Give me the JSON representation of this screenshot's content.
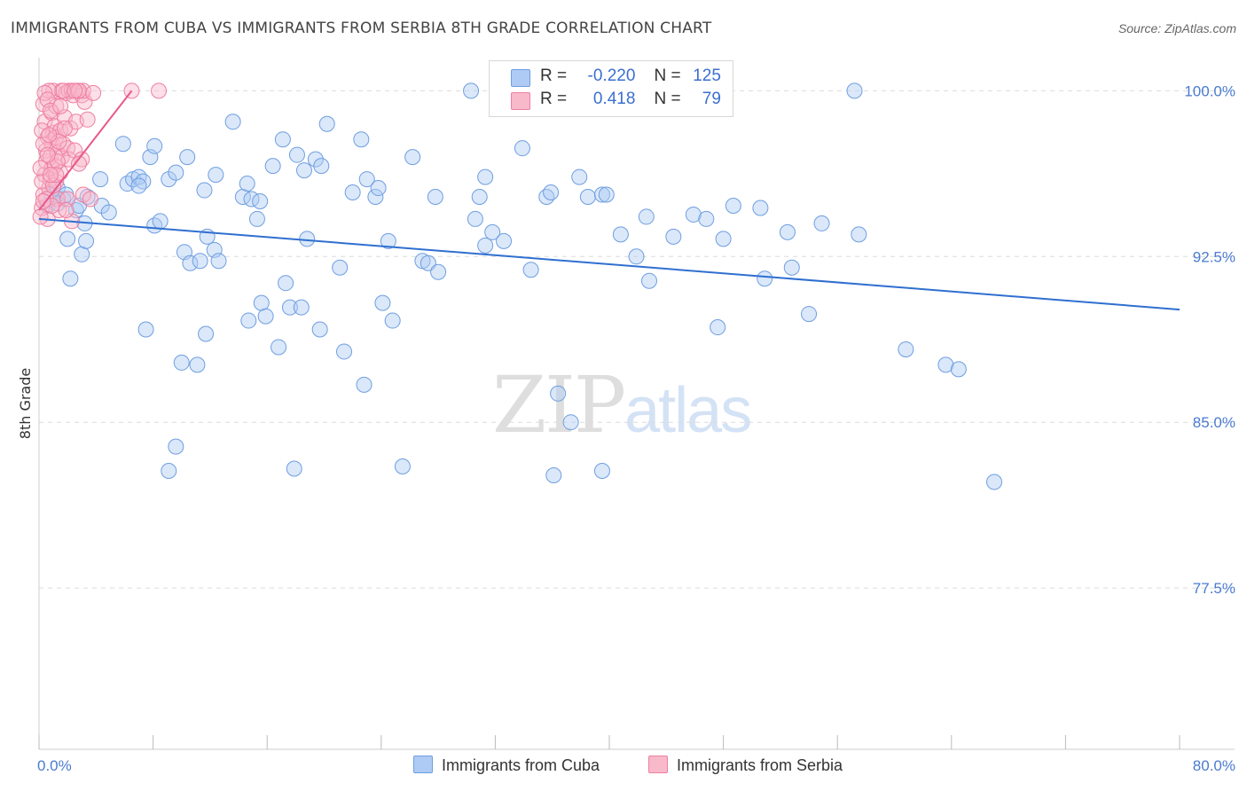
{
  "title": "IMMIGRANTS FROM CUBA VS IMMIGRANTS FROM SERBIA 8TH GRADE CORRELATION CHART",
  "source": "Source: ZipAtlas.com",
  "watermark": {
    "zip": "ZIP",
    "atlas": "atlas"
  },
  "legend": {
    "rows": [
      {
        "r_label": "R =",
        "r_value": "-0.220",
        "n_label": "N =",
        "n_value": "125",
        "color": "#aecbf5"
      },
      {
        "r_label": "R =",
        "r_value": "0.418",
        "n_label": "N =",
        "n_value": "79",
        "color": "#f8b9cb"
      }
    ]
  },
  "bottom_legend": {
    "cuba": "Immigrants from Cuba",
    "serbia": "Immigrants from Serbia"
  },
  "colors": {
    "cuba_fill": "#aecbf5",
    "cuba_stroke": "#6f9ee0",
    "cuba_line": "#2f6fd0",
    "serbia_fill": "#f8b9cb",
    "serbia_stroke": "#ee7fa0",
    "serbia_line": "#e8588a",
    "tick_text": "#4a7bd0",
    "grid": "#dcdcdc"
  },
  "chart_data": {
    "type": "scatter",
    "title": "IMMIGRANTS FROM CUBA VS IMMIGRANTS FROM SERBIA 8TH GRADE CORRELATION CHART",
    "xlabel": "",
    "ylabel": "8th Grade",
    "xlim": [
      0,
      80
    ],
    "ylim": [
      70.2,
      101.3
    ],
    "x_tick_labels": [
      "0.0%",
      "80.0%"
    ],
    "y_ticks": [
      77.5,
      85.0,
      92.5,
      100.0
    ],
    "y_tick_labels": [
      "77.5%",
      "85.0%",
      "92.5%",
      "100.0%"
    ],
    "grid": true,
    "series": [
      {
        "name": "Immigrants from Cuba",
        "trend": {
          "x": [
            0.0,
            80.0
          ],
          "y": [
            94.2,
            90.1
          ]
        },
        "points": [
          [
            0.6,
            94.8
          ],
          [
            0.9,
            95.3
          ],
          [
            1.3,
            95.6
          ],
          [
            1.7,
            95.1
          ],
          [
            1.9,
            95.3
          ],
          [
            1.3,
            94.9
          ],
          [
            2.6,
            94.6
          ],
          [
            2.8,
            94.8
          ],
          [
            3.2,
            94.0
          ],
          [
            3.4,
            95.2
          ],
          [
            3.0,
            92.6
          ],
          [
            3.3,
            93.2
          ],
          [
            2.0,
            93.3
          ],
          [
            2.2,
            91.5
          ],
          [
            4.3,
            96.0
          ],
          [
            4.4,
            94.8
          ],
          [
            5.9,
            97.6
          ],
          [
            6.2,
            95.8
          ],
          [
            6.6,
            96.0
          ],
          [
            7.0,
            96.1
          ],
          [
            7.3,
            95.9
          ],
          [
            7.8,
            97.0
          ],
          [
            8.1,
            97.5
          ],
          [
            8.1,
            93.9
          ],
          [
            8.5,
            94.1
          ],
          [
            9.1,
            96.0
          ],
          [
            9.6,
            96.3
          ],
          [
            10.4,
            97.0
          ],
          [
            10.2,
            92.7
          ],
          [
            10.6,
            92.2
          ],
          [
            11.3,
            92.3
          ],
          [
            11.8,
            93.4
          ],
          [
            12.3,
            92.8
          ],
          [
            12.6,
            92.3
          ],
          [
            11.6,
            95.5
          ],
          [
            12.4,
            96.2
          ],
          [
            13.6,
            98.6
          ],
          [
            14.3,
            95.2
          ],
          [
            14.9,
            95.1
          ],
          [
            14.6,
            95.8
          ],
          [
            15.3,
            94.2
          ],
          [
            15.6,
            90.4
          ],
          [
            15.5,
            95.0
          ],
          [
            16.4,
            96.6
          ],
          [
            17.1,
            97.8
          ],
          [
            17.6,
            90.2
          ],
          [
            18.1,
            97.1
          ],
          [
            18.6,
            96.4
          ],
          [
            18.8,
            93.3
          ],
          [
            19.4,
            96.9
          ],
          [
            19.8,
            96.6
          ],
          [
            20.2,
            98.5
          ],
          [
            21.1,
            92.0
          ],
          [
            22.0,
            95.4
          ],
          [
            22.6,
            97.8
          ],
          [
            23.0,
            96.0
          ],
          [
            23.6,
            95.2
          ],
          [
            23.8,
            95.6
          ],
          [
            24.5,
            93.2
          ],
          [
            26.2,
            97.0
          ],
          [
            26.9,
            92.3
          ],
          [
            27.3,
            92.2
          ],
          [
            28.0,
            91.8
          ],
          [
            27.8,
            95.2
          ],
          [
            30.3,
            100.0
          ],
          [
            30.6,
            94.2
          ],
          [
            30.9,
            95.2
          ],
          [
            31.3,
            96.1
          ],
          [
            31.3,
            93.0
          ],
          [
            31.8,
            93.6
          ],
          [
            32.6,
            93.2
          ],
          [
            33.9,
            97.4
          ],
          [
            34.5,
            91.9
          ],
          [
            35.6,
            95.2
          ],
          [
            35.9,
            95.4
          ],
          [
            37.9,
            96.1
          ],
          [
            38.5,
            95.2
          ],
          [
            39.5,
            95.3
          ],
          [
            39.8,
            95.3
          ],
          [
            40.8,
            93.5
          ],
          [
            41.9,
            92.5
          ],
          [
            42.8,
            91.4
          ],
          [
            42.6,
            94.3
          ],
          [
            44.5,
            93.4
          ],
          [
            45.9,
            94.4
          ],
          [
            46.8,
            94.2
          ],
          [
            47.6,
            89.3
          ],
          [
            48.0,
            93.3
          ],
          [
            48.7,
            94.8
          ],
          [
            50.6,
            94.7
          ],
          [
            50.9,
            91.5
          ],
          [
            52.5,
            93.6
          ],
          [
            52.8,
            92.0
          ],
          [
            54.0,
            89.9
          ],
          [
            54.9,
            94.0
          ],
          [
            57.2,
            100.0
          ],
          [
            57.5,
            93.5
          ],
          [
            60.8,
            88.3
          ],
          [
            63.6,
            87.6
          ],
          [
            64.5,
            87.4
          ],
          [
            67.0,
            82.3
          ],
          [
            14.7,
            89.6
          ],
          [
            15.9,
            89.8
          ],
          [
            16.8,
            88.4
          ],
          [
            17.3,
            91.3
          ],
          [
            18.4,
            90.2
          ],
          [
            19.7,
            89.2
          ],
          [
            21.4,
            88.2
          ],
          [
            22.8,
            86.7
          ],
          [
            24.1,
            90.4
          ],
          [
            24.8,
            89.6
          ],
          [
            25.5,
            83.0
          ],
          [
            17.9,
            82.9
          ],
          [
            36.4,
            86.3
          ],
          [
            37.3,
            85.0
          ],
          [
            36.1,
            82.6
          ],
          [
            39.5,
            82.8
          ],
          [
            7.5,
            89.2
          ],
          [
            10.0,
            87.7
          ],
          [
            11.1,
            87.6
          ],
          [
            11.7,
            89.0
          ],
          [
            9.6,
            83.9
          ],
          [
            9.1,
            82.8
          ],
          [
            7.0,
            95.7
          ],
          [
            4.9,
            94.5
          ]
        ]
      },
      {
        "name": "Immigrants from Serbia",
        "trend": {
          "x": [
            0.0,
            6.5
          ],
          "y": [
            94.6,
            100.0
          ]
        },
        "points": [
          [
            0.2,
            94.7
          ],
          [
            0.3,
            95.3
          ],
          [
            0.4,
            96.2
          ],
          [
            0.5,
            96.8
          ],
          [
            0.5,
            97.3
          ],
          [
            0.6,
            97.9
          ],
          [
            0.4,
            98.6
          ],
          [
            0.3,
            99.4
          ],
          [
            0.6,
            94.2
          ],
          [
            0.7,
            95.6
          ],
          [
            0.8,
            96.0
          ],
          [
            0.9,
            96.5
          ],
          [
            0.8,
            97.0
          ],
          [
            0.9,
            97.6
          ],
          [
            1.0,
            98.1
          ],
          [
            0.9,
            99.0
          ],
          [
            1.0,
            100.0
          ],
          [
            1.2,
            99.3
          ],
          [
            1.1,
            98.4
          ],
          [
            1.2,
            97.9
          ],
          [
            1.3,
            97.2
          ],
          [
            1.1,
            96.6
          ],
          [
            1.2,
            95.9
          ],
          [
            1.3,
            95.1
          ],
          [
            1.4,
            94.6
          ],
          [
            1.5,
            96.3
          ],
          [
            1.6,
            97.0
          ],
          [
            1.7,
            97.6
          ],
          [
            1.5,
            98.2
          ],
          [
            1.8,
            98.8
          ],
          [
            1.6,
            100.0
          ],
          [
            1.9,
            99.9
          ],
          [
            2.0,
            97.4
          ],
          [
            2.1,
            96.9
          ],
          [
            2.2,
            98.3
          ],
          [
            2.1,
            100.0
          ],
          [
            2.3,
            100.0
          ],
          [
            2.4,
            99.8
          ],
          [
            2.0,
            95.1
          ],
          [
            2.3,
            94.1
          ],
          [
            2.5,
            97.3
          ],
          [
            2.6,
            98.6
          ],
          [
            2.7,
            100.0
          ],
          [
            3.0,
            99.8
          ],
          [
            3.0,
            96.9
          ],
          [
            3.1,
            95.3
          ],
          [
            3.2,
            99.5
          ],
          [
            3.4,
            98.7
          ],
          [
            3.1,
            100.0
          ],
          [
            6.5,
            100.0
          ],
          [
            8.4,
            100.0
          ],
          [
            0.1,
            94.3
          ],
          [
            0.2,
            95.9
          ],
          [
            0.1,
            96.5
          ],
          [
            0.3,
            97.6
          ],
          [
            0.2,
            98.2
          ],
          [
            0.7,
            100.0
          ],
          [
            0.4,
            99.9
          ],
          [
            0.6,
            99.6
          ],
          [
            0.8,
            99.1
          ],
          [
            1.7,
            100.0
          ],
          [
            2.8,
            100.0
          ],
          [
            0.5,
            95.1
          ],
          [
            0.9,
            94.8
          ],
          [
            1.3,
            96.8
          ],
          [
            1.4,
            97.7
          ],
          [
            1.0,
            95.7
          ],
          [
            0.6,
            97.1
          ],
          [
            0.7,
            98.0
          ],
          [
            1.8,
            98.3
          ],
          [
            2.5,
            100.0
          ],
          [
            2.8,
            96.7
          ],
          [
            3.6,
            95.1
          ],
          [
            3.8,
            99.9
          ],
          [
            1.9,
            94.6
          ],
          [
            1.2,
            96.2
          ],
          [
            0.3,
            95.0
          ],
          [
            0.8,
            96.2
          ],
          [
            1.5,
            99.3
          ]
        ]
      }
    ]
  }
}
